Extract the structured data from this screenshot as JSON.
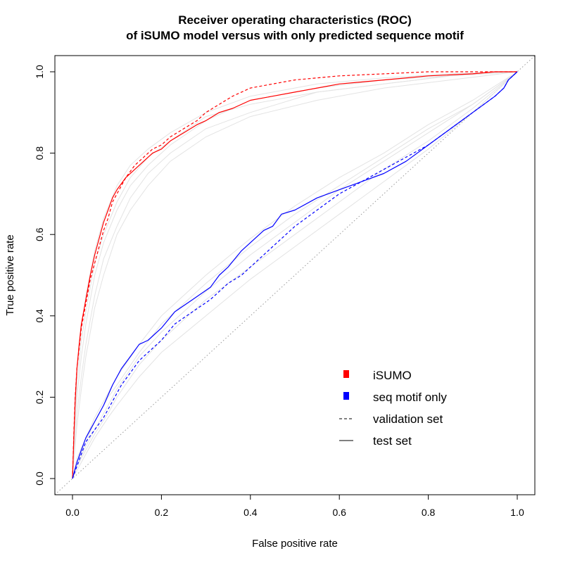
{
  "chart_data": {
    "type": "line",
    "title": [
      "Receiver operating characteristics (ROC)",
      "of iSUMO model versus with only predicted sequence motif"
    ],
    "xlabel": "False positive rate",
    "ylabel": "True positive rate",
    "xlim": [
      0,
      1
    ],
    "ylim": [
      0,
      1
    ],
    "xticks": [
      "0.0",
      "0.2",
      "0.4",
      "0.6",
      "0.8",
      "1.0"
    ],
    "yticks": [
      "0.0",
      "0.2",
      "0.4",
      "0.6",
      "0.8",
      "1.0"
    ],
    "grid": false,
    "legend_position": "bottom-right",
    "legend": [
      {
        "label": "iSUMO",
        "kind": "square",
        "color": "#ff0000"
      },
      {
        "label": "seq motif only",
        "kind": "square",
        "color": "#0000ff"
      },
      {
        "label": "validation set",
        "kind": "dashed",
        "color": "#000000"
      },
      {
        "label": "test set",
        "kind": "solid",
        "color": "#000000"
      }
    ],
    "colors": {
      "isumo": "#ff0000",
      "motif": "#0000ff",
      "background": "#e3e3e3",
      "diagonal": "#999999"
    },
    "series": [
      {
        "group": "isumo",
        "set": "test",
        "dash": false,
        "x": [
          0,
          0.003,
          0.006,
          0.01,
          0.015,
          0.02,
          0.03,
          0.04,
          0.05,
          0.06,
          0.07,
          0.08,
          0.09,
          0.1,
          0.12,
          0.14,
          0.16,
          0.18,
          0.2,
          0.22,
          0.25,
          0.28,
          0.3,
          0.33,
          0.36,
          0.4,
          0.45,
          0.5,
          0.55,
          0.6,
          0.7,
          0.8,
          0.9,
          0.95,
          1.0
        ],
        "y": [
          0,
          0.1,
          0.19,
          0.27,
          0.33,
          0.38,
          0.44,
          0.5,
          0.55,
          0.59,
          0.63,
          0.66,
          0.69,
          0.71,
          0.74,
          0.76,
          0.78,
          0.8,
          0.81,
          0.83,
          0.85,
          0.87,
          0.88,
          0.9,
          0.91,
          0.93,
          0.94,
          0.95,
          0.96,
          0.97,
          0.98,
          0.99,
          0.995,
          1.0,
          1.0
        ]
      },
      {
        "group": "isumo",
        "set": "validation",
        "dash": true,
        "x": [
          0,
          0.003,
          0.006,
          0.01,
          0.015,
          0.02,
          0.03,
          0.04,
          0.05,
          0.06,
          0.07,
          0.08,
          0.09,
          0.1,
          0.12,
          0.14,
          0.16,
          0.18,
          0.2,
          0.22,
          0.25,
          0.28,
          0.3,
          0.33,
          0.36,
          0.4,
          0.45,
          0.5,
          0.55,
          0.6,
          0.7,
          0.8,
          0.9,
          0.95,
          1.0
        ],
        "y": [
          0,
          0.11,
          0.2,
          0.27,
          0.32,
          0.37,
          0.43,
          0.49,
          0.53,
          0.57,
          0.61,
          0.64,
          0.68,
          0.7,
          0.74,
          0.77,
          0.79,
          0.81,
          0.82,
          0.84,
          0.86,
          0.88,
          0.9,
          0.92,
          0.94,
          0.96,
          0.97,
          0.98,
          0.985,
          0.99,
          0.995,
          1.0,
          1.0,
          1.0,
          1.0
        ]
      },
      {
        "group": "motif",
        "set": "test",
        "dash": false,
        "x": [
          0,
          0.01,
          0.02,
          0.03,
          0.05,
          0.07,
          0.09,
          0.11,
          0.13,
          0.15,
          0.17,
          0.2,
          0.23,
          0.27,
          0.31,
          0.33,
          0.35,
          0.38,
          0.4,
          0.43,
          0.45,
          0.47,
          0.5,
          0.55,
          0.6,
          0.65,
          0.7,
          0.75,
          0.8,
          0.85,
          0.9,
          0.95,
          0.97,
          0.98,
          1.0
        ],
        "y": [
          0,
          0.04,
          0.07,
          0.1,
          0.14,
          0.18,
          0.23,
          0.27,
          0.3,
          0.33,
          0.34,
          0.37,
          0.41,
          0.44,
          0.47,
          0.5,
          0.52,
          0.56,
          0.58,
          0.61,
          0.62,
          0.65,
          0.66,
          0.69,
          0.71,
          0.73,
          0.75,
          0.78,
          0.82,
          0.86,
          0.9,
          0.94,
          0.96,
          0.98,
          1.0
        ]
      },
      {
        "group": "motif",
        "set": "validation",
        "dash": true,
        "x": [
          0,
          0.01,
          0.02,
          0.03,
          0.05,
          0.07,
          0.09,
          0.11,
          0.13,
          0.15,
          0.17,
          0.2,
          0.23,
          0.27,
          0.31,
          0.33,
          0.35,
          0.38,
          0.4,
          0.43,
          0.45,
          0.47,
          0.5,
          0.55,
          0.6,
          0.65,
          0.7,
          0.75,
          0.8,
          0.85,
          0.9,
          0.95,
          0.97,
          0.98,
          1.0
        ],
        "y": [
          0,
          0.03,
          0.06,
          0.09,
          0.12,
          0.15,
          0.19,
          0.23,
          0.26,
          0.29,
          0.31,
          0.34,
          0.38,
          0.41,
          0.44,
          0.46,
          0.48,
          0.5,
          0.52,
          0.55,
          0.57,
          0.59,
          0.62,
          0.66,
          0.7,
          0.73,
          0.76,
          0.79,
          0.82,
          0.86,
          0.9,
          0.94,
          0.96,
          0.98,
          1.0
        ]
      },
      {
        "group": "background",
        "x": [
          0,
          0.005,
          0.01,
          0.02,
          0.03,
          0.05,
          0.07,
          0.1,
          0.13,
          0.17,
          0.22,
          0.3,
          0.4,
          0.55,
          0.7,
          0.85,
          1.0
        ],
        "y": [
          0,
          0.12,
          0.2,
          0.3,
          0.38,
          0.5,
          0.58,
          0.66,
          0.72,
          0.77,
          0.82,
          0.88,
          0.93,
          0.96,
          0.98,
          0.99,
          1.0
        ]
      },
      {
        "group": "background",
        "x": [
          0,
          0.005,
          0.01,
          0.02,
          0.03,
          0.05,
          0.07,
          0.1,
          0.13,
          0.17,
          0.22,
          0.3,
          0.4,
          0.55,
          0.7,
          0.85,
          1.0
        ],
        "y": [
          0,
          0.16,
          0.27,
          0.37,
          0.45,
          0.56,
          0.64,
          0.72,
          0.77,
          0.81,
          0.85,
          0.9,
          0.94,
          0.97,
          0.985,
          0.995,
          1.0
        ]
      },
      {
        "group": "background",
        "x": [
          0,
          0.005,
          0.01,
          0.02,
          0.03,
          0.05,
          0.07,
          0.1,
          0.13,
          0.17,
          0.22,
          0.3,
          0.4,
          0.55,
          0.7,
          0.85,
          1.0
        ],
        "y": [
          0,
          0.09,
          0.16,
          0.25,
          0.33,
          0.45,
          0.54,
          0.62,
          0.69,
          0.75,
          0.8,
          0.86,
          0.9,
          0.95,
          0.97,
          0.99,
          1.0
        ]
      },
      {
        "group": "background",
        "x": [
          0,
          0.005,
          0.01,
          0.02,
          0.03,
          0.05,
          0.07,
          0.1,
          0.13,
          0.17,
          0.22,
          0.3,
          0.4,
          0.55,
          0.7,
          0.85,
          1.0
        ],
        "y": [
          0,
          0.14,
          0.23,
          0.34,
          0.41,
          0.53,
          0.6,
          0.68,
          0.74,
          0.79,
          0.83,
          0.89,
          0.92,
          0.95,
          0.97,
          0.99,
          1.0
        ]
      },
      {
        "group": "background",
        "x": [
          0,
          0.005,
          0.01,
          0.02,
          0.03,
          0.05,
          0.07,
          0.1,
          0.13,
          0.17,
          0.22,
          0.3,
          0.4,
          0.55,
          0.7,
          0.85,
          1.0
        ],
        "y": [
          0,
          0.07,
          0.13,
          0.22,
          0.3,
          0.42,
          0.5,
          0.6,
          0.66,
          0.72,
          0.78,
          0.84,
          0.89,
          0.93,
          0.96,
          0.98,
          1.0
        ]
      },
      {
        "group": "background",
        "x": [
          0,
          0.01,
          0.03,
          0.05,
          0.08,
          0.1,
          0.15,
          0.2,
          0.3,
          0.4,
          0.5,
          0.6,
          0.7,
          0.8,
          0.9,
          1.0
        ],
        "y": [
          0,
          0.03,
          0.08,
          0.12,
          0.18,
          0.22,
          0.3,
          0.36,
          0.46,
          0.55,
          0.63,
          0.71,
          0.78,
          0.85,
          0.92,
          1.0
        ]
      },
      {
        "group": "background",
        "x": [
          0,
          0.01,
          0.03,
          0.05,
          0.08,
          0.1,
          0.15,
          0.2,
          0.3,
          0.4,
          0.5,
          0.6,
          0.7,
          0.8,
          0.9,
          1.0
        ],
        "y": [
          0,
          0.05,
          0.1,
          0.15,
          0.21,
          0.25,
          0.33,
          0.4,
          0.5,
          0.59,
          0.67,
          0.74,
          0.8,
          0.87,
          0.93,
          1.0
        ]
      },
      {
        "group": "background",
        "x": [
          0,
          0.01,
          0.03,
          0.05,
          0.08,
          0.1,
          0.15,
          0.2,
          0.3,
          0.4,
          0.5,
          0.6,
          0.7,
          0.8,
          0.9,
          1.0
        ],
        "y": [
          0,
          0.02,
          0.06,
          0.1,
          0.15,
          0.18,
          0.25,
          0.31,
          0.4,
          0.49,
          0.57,
          0.65,
          0.73,
          0.81,
          0.9,
          1.0
        ]
      },
      {
        "group": "background",
        "x": [
          0,
          0.01,
          0.03,
          0.05,
          0.08,
          0.1,
          0.15,
          0.2,
          0.3,
          0.4,
          0.5,
          0.6,
          0.7,
          0.8,
          0.9,
          1.0
        ],
        "y": [
          0,
          0.04,
          0.09,
          0.14,
          0.2,
          0.23,
          0.31,
          0.38,
          0.48,
          0.57,
          0.65,
          0.72,
          0.79,
          0.86,
          0.92,
          1.0
        ]
      },
      {
        "group": "background",
        "x": [
          0,
          0.01,
          0.03,
          0.05,
          0.08,
          0.1,
          0.15,
          0.2,
          0.3,
          0.4,
          0.5,
          0.6,
          0.7,
          0.8,
          0.9,
          1.0
        ],
        "y": [
          0,
          0.03,
          0.07,
          0.11,
          0.16,
          0.2,
          0.28,
          0.34,
          0.44,
          0.52,
          0.6,
          0.68,
          0.76,
          0.83,
          0.91,
          1.0
        ]
      }
    ]
  }
}
